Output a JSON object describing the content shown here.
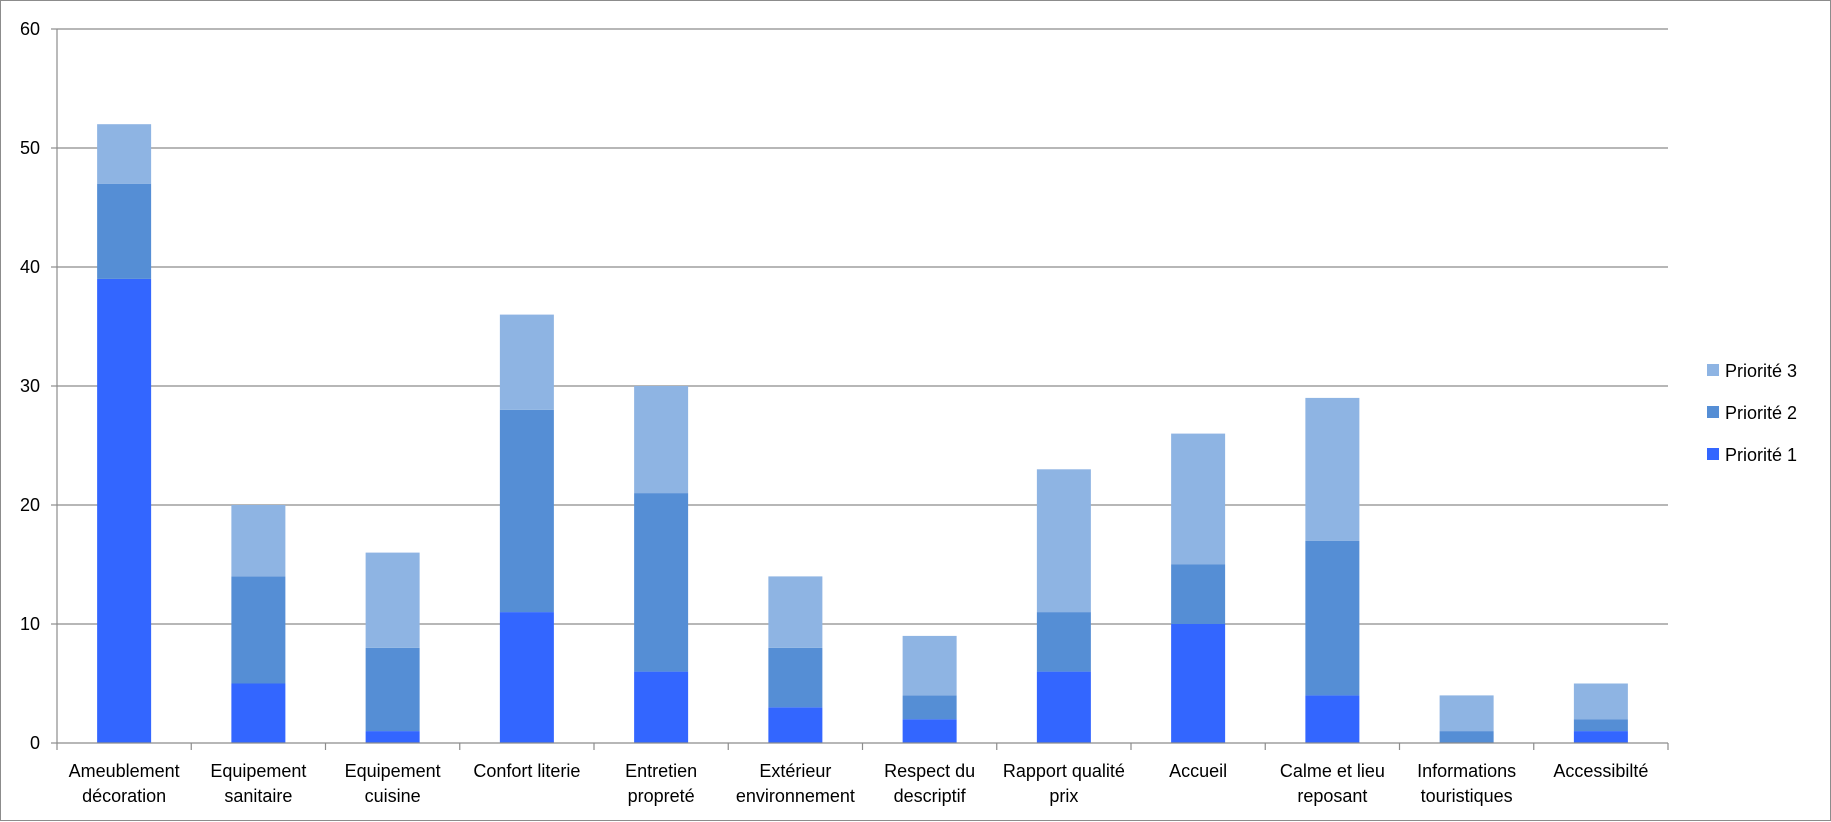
{
  "chart_data": {
    "type": "bar",
    "stacked": true,
    "categories": [
      [
        "Ameublement",
        "décoration"
      ],
      [
        "Equipement",
        "sanitaire"
      ],
      [
        "Equipement",
        "cuisine"
      ],
      [
        "Confort literie"
      ],
      [
        "Entretien",
        "propreté"
      ],
      [
        "Extérieur",
        "environnement"
      ],
      [
        "Respect du",
        "descriptif"
      ],
      [
        "Rapport qualité",
        "prix"
      ],
      [
        "Accueil"
      ],
      [
        "Calme et lieu",
        "reposant"
      ],
      [
        "Informations",
        "touristiques"
      ],
      [
        "Accessibilté"
      ]
    ],
    "series": [
      {
        "name": "Priorité 1",
        "color": "#3366ff",
        "values": [
          39,
          5,
          1,
          11,
          6,
          3,
          2,
          6,
          10,
          4,
          0,
          1
        ]
      },
      {
        "name": "Priorité 2",
        "color": "#558ed5",
        "values": [
          8,
          9,
          7,
          17,
          15,
          5,
          2,
          5,
          5,
          13,
          1,
          1
        ]
      },
      {
        "name": "Priorité 3",
        "color": "#8eb4e3",
        "values": [
          5,
          6,
          8,
          8,
          9,
          6,
          5,
          12,
          11,
          12,
          3,
          3
        ]
      }
    ],
    "ylim": [
      0,
      60
    ],
    "yticks": [
      0,
      10,
      20,
      30,
      40,
      50,
      60
    ],
    "grid": true,
    "legend_position": "right",
    "legend_order": [
      "Priorité 3",
      "Priorité 2",
      "Priorité 1"
    ],
    "title": "",
    "xlabel": "",
    "ylabel": ""
  }
}
